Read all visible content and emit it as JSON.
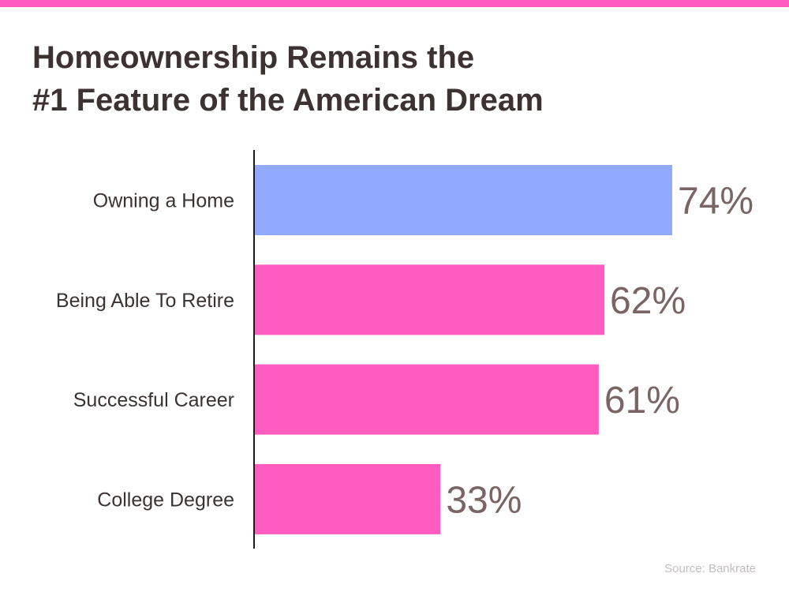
{
  "title_lines": [
    "Homeownership Remains the",
    "#1 Feature of the American Dream"
  ],
  "source": "Source: Bankrate",
  "colors": {
    "top_band": "#ff5cc0",
    "highlight_bar": "#91aafe",
    "bar": "#ff5cc0",
    "value_label": "#7a6464",
    "category_label": "#3d3232",
    "axis": "#1a1a1a"
  },
  "chart_data": {
    "type": "bar",
    "orientation": "horizontal",
    "title": "Homeownership Remains the #1 Feature of the American Dream",
    "categories": [
      "Owning a Home",
      "Being Able To Retire",
      "Successful Career",
      "College Degree"
    ],
    "values": [
      74,
      62,
      61,
      33
    ],
    "value_labels": [
      "74%",
      "62%",
      "61%",
      "33%"
    ],
    "highlight_index": 0,
    "xlim": [
      0,
      100
    ],
    "grid": false,
    "legend": "none"
  }
}
